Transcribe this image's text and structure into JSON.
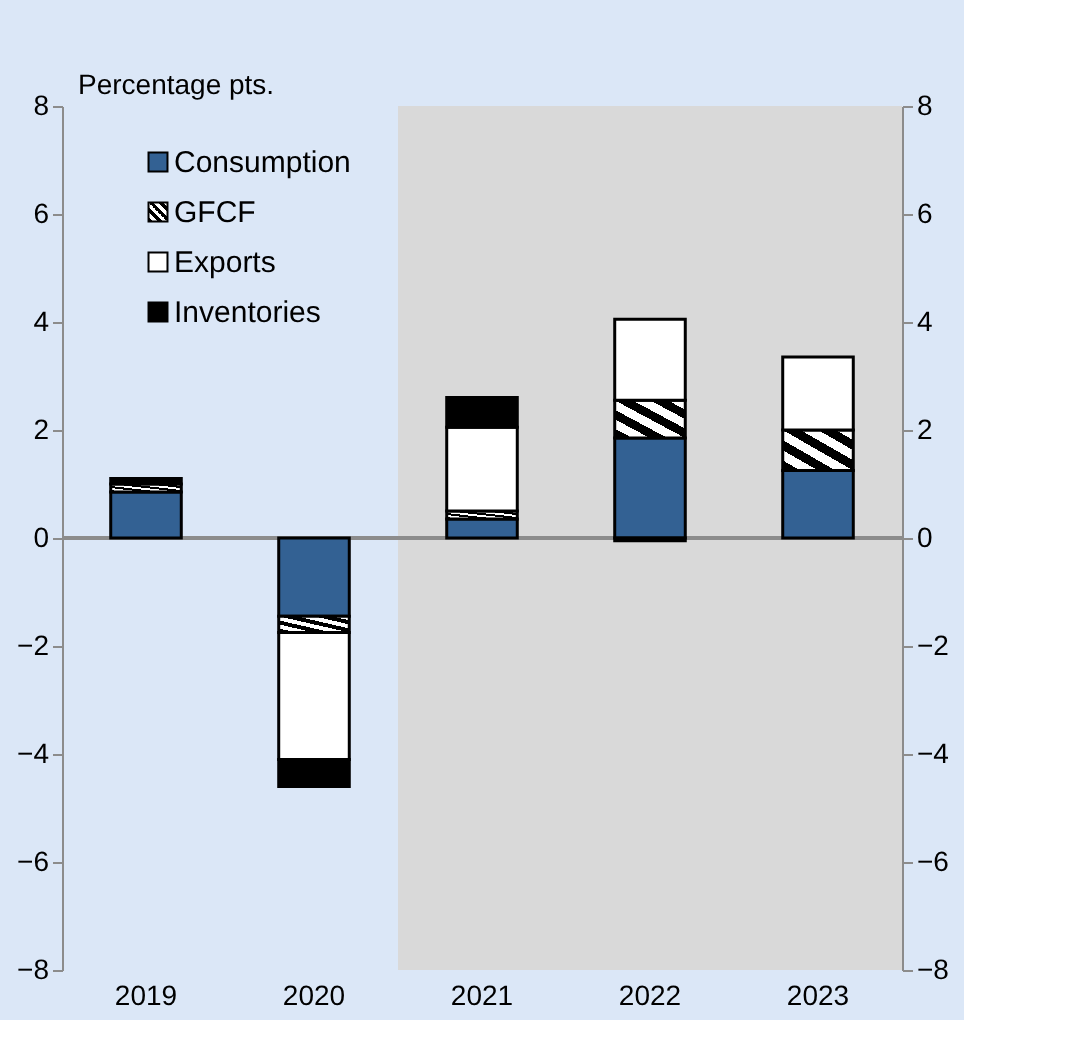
{
  "chart_data": {
    "type": "bar",
    "stacked": true,
    "ylabel": "Percentage pts.",
    "categories": [
      "2019",
      "2020",
      "2021",
      "2022",
      "2023"
    ],
    "series": [
      {
        "name": "Consumption",
        "color": "#336193",
        "values": [
          0.85,
          -1.45,
          0.35,
          1.85,
          1.25
        ]
      },
      {
        "name": "GFCF",
        "color": "#000000",
        "values": [
          0.15,
          -0.3,
          0.15,
          0.7,
          0.75
        ]
      },
      {
        "name": "Exports",
        "color": "#ffffff",
        "values": [
          0,
          -2.35,
          1.55,
          1.5,
          1.35
        ]
      },
      {
        "name": "Inventories",
        "color": "#000000",
        "values": [
          0.1,
          -0.5,
          0.55,
          -0.05,
          0
        ]
      }
    ],
    "ylim": [
      -8,
      8
    ],
    "yticks": [
      -8,
      -6,
      -4,
      -2,
      0,
      2,
      4,
      6,
      8
    ],
    "y2lim": [
      -8,
      8
    ],
    "y2ticks": [
      -8,
      -6,
      -4,
      -2,
      0,
      2,
      4,
      6,
      8
    ],
    "bands": [
      {
        "axis": "x",
        "from": "2021",
        "to": "2023",
        "color": "#d9d9d9"
      }
    ],
    "ref_lines": [
      {
        "axis": "y",
        "value": 0,
        "color": "#8c8c8c"
      }
    ],
    "legend": "top left",
    "grid": false
  }
}
